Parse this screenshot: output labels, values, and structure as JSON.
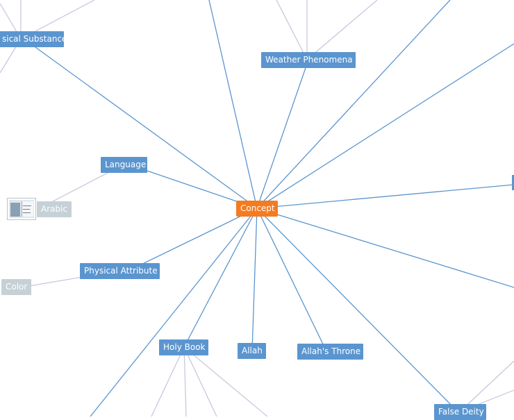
{
  "graph": {
    "center": "Concept",
    "nodes": {
      "physical_substance": "sical Substance",
      "weather_phenomena": "Weather Phenomena",
      "language": "Language",
      "arabic": "Arabic",
      "physical_attribute": "Physical Attribute",
      "color": "Color",
      "holy_book": "Holy Book",
      "allah": "Allah",
      "allahs_throne": "Allah's Throne",
      "false_deity": "False Deity"
    },
    "thumbnail_icon": "document-photo-icon"
  },
  "colors": {
    "center_node": "#f47b1f",
    "primary_node": "#5b95cf",
    "secondary_node": "#c5d1d6",
    "primary_edge": "#5b95cf",
    "secondary_edge": "#c4c4dc"
  }
}
